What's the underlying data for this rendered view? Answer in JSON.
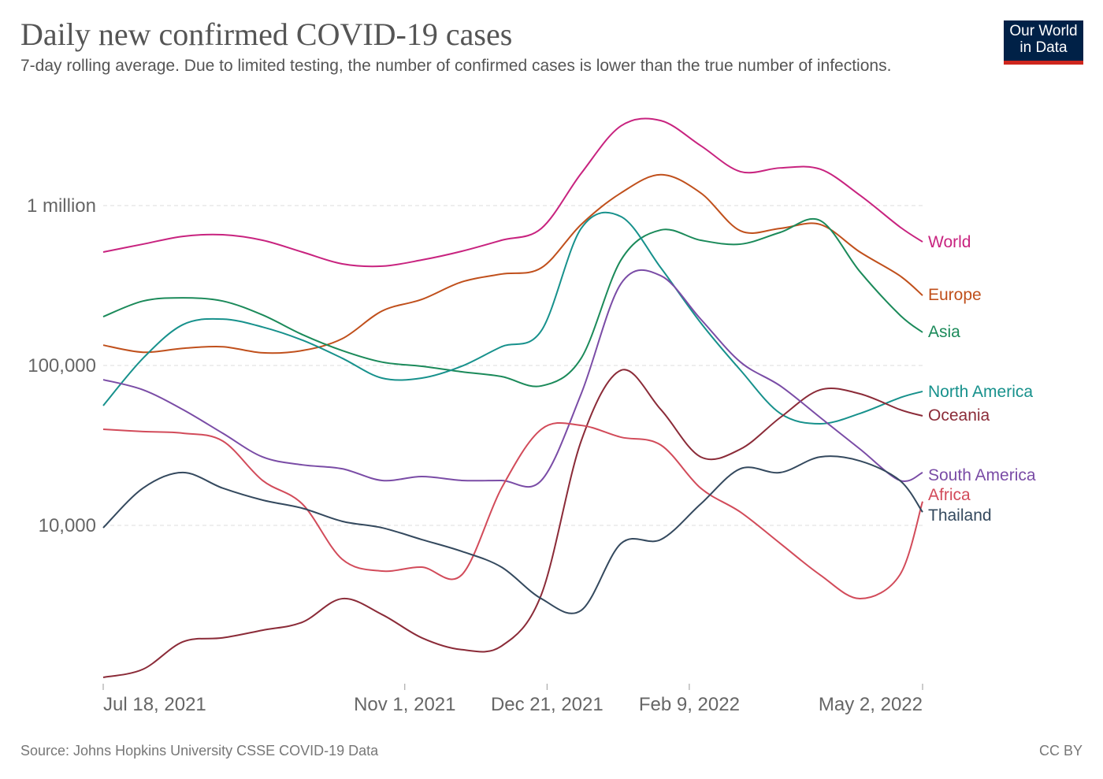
{
  "header": {
    "title": "Daily new confirmed COVID-19 cases",
    "subtitle": "7-day rolling average. Due to limited testing, the number of confirmed cases is lower than the true number of infections.",
    "logo": "Our World in Data"
  },
  "footer": {
    "source": "Source: Johns Hopkins University CSSE COVID-19 Data",
    "license": "CC BY"
  },
  "chart_data": {
    "type": "line",
    "title": "Daily new confirmed COVID-19 cases",
    "y_scale": "log",
    "ylim": [
      1000,
      3500000
    ],
    "xlim": [
      "2021-07-18",
      "2022-05-02"
    ],
    "grid": "horizontal dashed",
    "legend": "right (inline labels at line ends)",
    "y_ticks": [
      {
        "value": 1000000,
        "label": "1 million"
      },
      {
        "value": 100000,
        "label": "100,000"
      },
      {
        "value": 10000,
        "label": "10,000"
      }
    ],
    "x_ticks": [
      {
        "date": "2021-07-18",
        "label": "Jul 18, 2021"
      },
      {
        "date": "2021-11-01",
        "label": "Nov 1, 2021"
      },
      {
        "date": "2021-12-21",
        "label": "Dec 21, 2021"
      },
      {
        "date": "2022-02-09",
        "label": "Feb 9, 2022"
      },
      {
        "date": "2022-05-02",
        "label": "May 2, 2022"
      }
    ],
    "x": [
      "2021-07-18",
      "2021-08-01",
      "2021-08-15",
      "2021-08-29",
      "2021-09-12",
      "2021-09-26",
      "2021-10-10",
      "2021-10-24",
      "2021-11-07",
      "2021-11-21",
      "2021-12-05",
      "2021-12-19",
      "2022-01-02",
      "2022-01-16",
      "2022-01-30",
      "2022-02-13",
      "2022-02-27",
      "2022-03-13",
      "2022-03-27",
      "2022-04-10",
      "2022-04-24",
      "2022-05-02"
    ],
    "series": [
      {
        "name": "World",
        "color": "#c8237f",
        "values": [
          512000,
          574000,
          642000,
          657000,
          607000,
          512000,
          432000,
          418000,
          457000,
          518000,
          607000,
          720000,
          1590000,
          3150000,
          3400000,
          2370000,
          1630000,
          1720000,
          1690000,
          1160000,
          736000,
          593000
        ]
      },
      {
        "name": "Europe",
        "color": "#c0501c",
        "values": [
          134000,
          121000,
          128000,
          131000,
          120000,
          124000,
          147000,
          219000,
          259000,
          333000,
          373000,
          408000,
          762000,
          1200000,
          1560000,
          1200000,
          695000,
          720000,
          762000,
          512000,
          364000,
          274000
        ]
      },
      {
        "name": "Asia",
        "color": "#1b8a5a",
        "values": [
          202000,
          253000,
          265000,
          253000,
          207000,
          156000,
          124000,
          105000,
          98900,
          91300,
          85300,
          74500,
          111000,
          457000,
          704000,
          607000,
          574000,
          680000,
          806000,
          386000,
          207000,
          161000
        ]
      },
      {
        "name": "North America",
        "color": "#17918c",
        "values": [
          56100,
          111000,
          180000,
          195000,
          174000,
          144000,
          111000,
          83400,
          83400,
          98900,
          131000,
          165000,
          720000,
          853000,
          408000,
          185000,
          93400,
          50100,
          43200,
          50100,
          62800,
          68800
        ]
      },
      {
        "name": "Oceania",
        "color": "#8b2b38",
        "values": [
          1120,
          1260,
          1870,
          1980,
          2210,
          2480,
          3480,
          2770,
          1980,
          1670,
          1760,
          3690,
          33700,
          93400,
          53000,
          26800,
          30000,
          47300,
          70400,
          66500,
          53000,
          48400
        ]
      },
      {
        "name": "South America",
        "color": "#7a4ca6",
        "values": [
          81500,
          70400,
          53000,
          37700,
          26800,
          23900,
          22600,
          19100,
          20200,
          19100,
          19100,
          19100,
          66500,
          325000,
          364000,
          195000,
          105000,
          74500,
          47300,
          30000,
          19100,
          21400
        ]
      },
      {
        "name": "Africa",
        "color": "#d24b5a",
        "values": [
          39900,
          38600,
          37700,
          33700,
          19100,
          13600,
          6140,
          5180,
          5480,
          4900,
          17100,
          39900,
          42200,
          35600,
          31800,
          17100,
          12100,
          7700,
          4900,
          3480,
          4900,
          14100
        ]
      },
      {
        "name": "Thailand",
        "color": "#34495e",
        "values": [
          9660,
          17100,
          21400,
          17100,
          14400,
          12800,
          10600,
          9660,
          8150,
          6880,
          5480,
          3480,
          2940,
          7700,
          8150,
          13600,
          22600,
          21400,
          26800,
          25300,
          19100,
          12100
        ]
      }
    ]
  }
}
